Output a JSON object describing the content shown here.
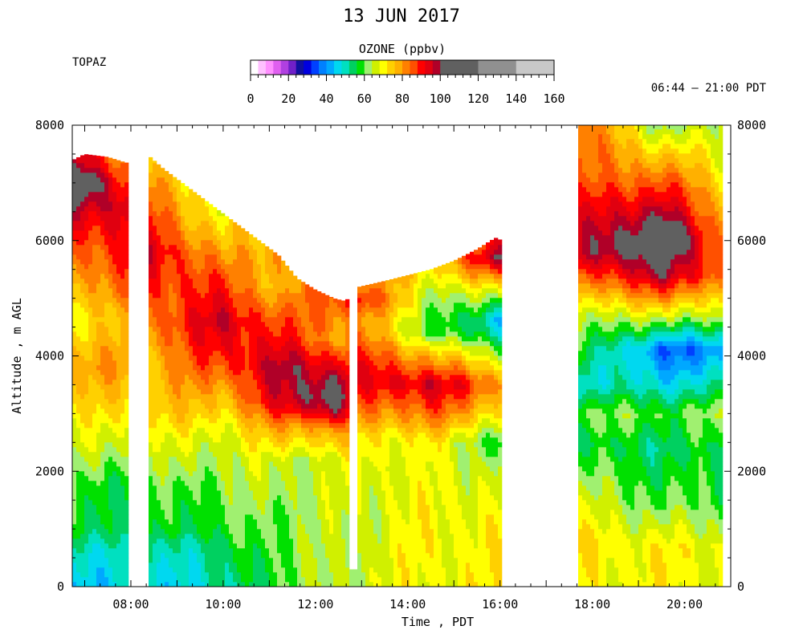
{
  "header": {
    "title": "13 JUN 2017",
    "station": "TOPAZ",
    "time_range": "06:44 – 21:00 PDT"
  },
  "colorbar": {
    "title": "OZONE (ppbv)",
    "min": 0,
    "max": 160,
    "labels": [
      "0",
      "20",
      "40",
      "60",
      "80",
      "100",
      "120",
      "140",
      "160"
    ],
    "bands": [
      {
        "from": 0,
        "to": 4,
        "color": "#ffffff"
      },
      {
        "from": 4,
        "to": 8,
        "color": "#ffc0ff"
      },
      {
        "from": 8,
        "to": 12,
        "color": "#ff90ff"
      },
      {
        "from": 12,
        "to": 16,
        "color": "#e060f0"
      },
      {
        "from": 16,
        "to": 20,
        "color": "#b040e0"
      },
      {
        "from": 20,
        "to": 24,
        "color": "#7020c8"
      },
      {
        "from": 24,
        "to": 28,
        "color": "#1010a0"
      },
      {
        "from": 28,
        "to": 32,
        "color": "#0000e0"
      },
      {
        "from": 32,
        "to": 36,
        "color": "#0040ff"
      },
      {
        "from": 36,
        "to": 40,
        "color": "#0080ff"
      },
      {
        "from": 40,
        "to": 44,
        "color": "#00a8ff"
      },
      {
        "from": 44,
        "to": 48,
        "color": "#00d8f0"
      },
      {
        "from": 48,
        "to": 52,
        "color": "#00e0c0"
      },
      {
        "from": 52,
        "to": 56,
        "color": "#00d060"
      },
      {
        "from": 56,
        "to": 60,
        "color": "#00e000"
      },
      {
        "from": 60,
        "to": 64,
        "color": "#a0f070"
      },
      {
        "from": 64,
        "to": 68,
        "color": "#d0f000"
      },
      {
        "from": 68,
        "to": 72,
        "color": "#ffff00"
      },
      {
        "from": 72,
        "to": 76,
        "color": "#ffd000"
      },
      {
        "from": 76,
        "to": 80,
        "color": "#ffb000"
      },
      {
        "from": 80,
        "to": 84,
        "color": "#ff8000"
      },
      {
        "from": 84,
        "to": 88,
        "color": "#ff5000"
      },
      {
        "from": 88,
        "to": 92,
        "color": "#ff0000"
      },
      {
        "from": 92,
        "to": 96,
        "color": "#e00010"
      },
      {
        "from": 96,
        "to": 100,
        "color": "#b00028"
      },
      {
        "from": 100,
        "to": 120,
        "color": "#606060"
      },
      {
        "from": 120,
        "to": 140,
        "color": "#909090"
      },
      {
        "from": 140,
        "to": 160,
        "color": "#c8c8c8"
      }
    ]
  },
  "chart_data": {
    "type": "heatmap",
    "title": "13 JUN 2017",
    "variable": "OZONE (ppbv)",
    "xlabel": "Time , PDT",
    "ylabel": "Altitude , m AGL",
    "x_unit": "hours PDT",
    "xlim": [
      6.73,
      21.0
    ],
    "ylim": [
      0,
      8000
    ],
    "x_ticks": [
      {
        "value": 8,
        "label": "08:00"
      },
      {
        "value": 10,
        "label": "10:00"
      },
      {
        "value": 12,
        "label": "12:00"
      },
      {
        "value": 14,
        "label": "14:00"
      },
      {
        "value": 16,
        "label": "16:00"
      },
      {
        "value": 18,
        "label": "18:00"
      },
      {
        "value": 20,
        "label": "20:00"
      }
    ],
    "y_ticks": [
      {
        "value": 0,
        "label": "0"
      },
      {
        "value": 2000,
        "label": "2000"
      },
      {
        "value": 4000,
        "label": "4000"
      },
      {
        "value": 6000,
        "label": "6000"
      },
      {
        "value": 8000,
        "label": "8000"
      }
    ],
    "data_gaps": [
      {
        "start": 7.95,
        "end": 8.35,
        "from_altitude": 0
      },
      {
        "start": 12.7,
        "end": 12.95,
        "from_altitude": 300
      },
      {
        "start": 16.05,
        "end": 17.7,
        "from_altitude": 0
      },
      {
        "start": 20.8,
        "end": 21.0,
        "from_altitude": 0
      }
    ],
    "profile_tops": [
      {
        "time": 6.75,
        "altitude": 7400
      },
      {
        "time": 7.0,
        "altitude": 7500
      },
      {
        "time": 7.5,
        "altitude": 7450
      },
      {
        "time": 7.9,
        "altitude": 7350
      },
      {
        "time": 8.35,
        "altitude": 7500
      },
      {
        "time": 8.7,
        "altitude": 7250
      },
      {
        "time": 9.2,
        "altitude": 6950
      },
      {
        "time": 9.7,
        "altitude": 6650
      },
      {
        "time": 10.2,
        "altitude": 6350
      },
      {
        "time": 10.7,
        "altitude": 6050
      },
      {
        "time": 11.2,
        "altitude": 5750
      },
      {
        "time": 11.6,
        "altitude": 5350
      },
      {
        "time": 12.0,
        "altitude": 5150
      },
      {
        "time": 12.4,
        "altitude": 5000
      },
      {
        "time": 12.65,
        "altitude": 4950
      },
      {
        "time": 12.95,
        "altitude": 5200
      },
      {
        "time": 13.5,
        "altitude": 5300
      },
      {
        "time": 14.0,
        "altitude": 5400
      },
      {
        "time": 14.5,
        "altitude": 5500
      },
      {
        "time": 15.0,
        "altitude": 5650
      },
      {
        "time": 15.5,
        "altitude": 5850
      },
      {
        "time": 15.9,
        "altitude": 6050
      },
      {
        "time": 16.05,
        "altitude": 6000
      },
      {
        "time": 17.7,
        "altitude": 8000
      },
      {
        "time": 20.8,
        "altitude": 8000
      }
    ],
    "ozone_profiles": [
      {
        "time": 6.75,
        "levels": [
          {
            "altitude": 0,
            "ozone": 46
          },
          {
            "altitude": 600,
            "ozone": 50
          },
          {
            "altitude": 1000,
            "ozone": 56
          },
          {
            "altitude": 1800,
            "ozone": 58
          },
          {
            "altitude": 2300,
            "ozone": 64
          },
          {
            "altitude": 3000,
            "ozone": 70
          },
          {
            "altitude": 3800,
            "ozone": 78
          },
          {
            "altitude": 4600,
            "ozone": 72
          },
          {
            "altitude": 5300,
            "ozone": 80
          },
          {
            "altitude": 6100,
            "ozone": 88
          },
          {
            "altitude": 6600,
            "ozone": 98
          },
          {
            "altitude": 7000,
            "ozone": 115
          },
          {
            "altitude": 7400,
            "ozone": 95
          }
        ]
      },
      {
        "time": 7.9,
        "levels": [
          {
            "altitude": 0,
            "ozone": 46
          },
          {
            "altitude": 600,
            "ozone": 50
          },
          {
            "altitude": 1000,
            "ozone": 56
          },
          {
            "altitude": 1800,
            "ozone": 58
          },
          {
            "altitude": 2300,
            "ozone": 64
          },
          {
            "altitude": 3000,
            "ozone": 72
          },
          {
            "altitude": 3800,
            "ozone": 80
          },
          {
            "altitude": 4600,
            "ozone": 74
          },
          {
            "altitude": 5300,
            "ozone": 84
          },
          {
            "altitude": 6100,
            "ozone": 92
          },
          {
            "altitude": 6600,
            "ozone": 96
          },
          {
            "altitude": 7000,
            "ozone": 88
          },
          {
            "altitude": 7350,
            "ozone": 84
          }
        ]
      },
      {
        "time": 8.35,
        "levels": [
          {
            "altitude": 0,
            "ozone": 46
          },
          {
            "altitude": 700,
            "ozone": 50
          },
          {
            "altitude": 1000,
            "ozone": 56
          },
          {
            "altitude": 1700,
            "ozone": 58
          },
          {
            "altitude": 2300,
            "ozone": 64
          },
          {
            "altitude": 3000,
            "ozone": 74
          },
          {
            "altitude": 4000,
            "ozone": 78
          },
          {
            "altitude": 5000,
            "ozone": 86
          },
          {
            "altitude": 5800,
            "ozone": 96
          },
          {
            "altitude": 6600,
            "ozone": 86
          },
          {
            "altitude": 7500,
            "ozone": 72
          }
        ]
      },
      {
        "time": 10.0,
        "levels": [
          {
            "altitude": 0,
            "ozone": 50
          },
          {
            "altitude": 700,
            "ozone": 54
          },
          {
            "altitude": 1000,
            "ozone": 58
          },
          {
            "altitude": 1700,
            "ozone": 62
          },
          {
            "altitude": 2600,
            "ozone": 68
          },
          {
            "altitude": 3300,
            "ozone": 78
          },
          {
            "altitude": 4000,
            "ozone": 90
          },
          {
            "altitude": 4600,
            "ozone": 96
          },
          {
            "altitude": 5300,
            "ozone": 86
          },
          {
            "altitude": 6000,
            "ozone": 74
          },
          {
            "altitude": 6500,
            "ozone": 68
          }
        ]
      },
      {
        "time": 11.3,
        "levels": [
          {
            "altitude": 0,
            "ozone": 60
          },
          {
            "altitude": 700,
            "ozone": 62
          },
          {
            "altitude": 1200,
            "ozone": 62
          },
          {
            "altitude": 2200,
            "ozone": 66
          },
          {
            "altitude": 2800,
            "ozone": 80
          },
          {
            "altitude": 3200,
            "ozone": 94
          },
          {
            "altitude": 3800,
            "ozone": 98
          },
          {
            "altitude": 4400,
            "ozone": 88
          },
          {
            "altitude": 5200,
            "ozone": 76
          },
          {
            "altitude": 5700,
            "ozone": 80
          }
        ]
      },
      {
        "time": 12.4,
        "levels": [
          {
            "altitude": 0,
            "ozone": 64
          },
          {
            "altitude": 1000,
            "ozone": 64
          },
          {
            "altitude": 2200,
            "ozone": 66
          },
          {
            "altitude": 2700,
            "ozone": 80
          },
          {
            "altitude": 3000,
            "ozone": 98
          },
          {
            "altitude": 3300,
            "ozone": 108
          },
          {
            "altitude": 3700,
            "ozone": 98
          },
          {
            "altitude": 4300,
            "ozone": 80
          },
          {
            "altitude": 5000,
            "ozone": 88
          }
        ]
      },
      {
        "time": 12.95,
        "levels": [
          {
            "altitude": 0,
            "ozone": 66
          },
          {
            "altitude": 1000,
            "ozone": 66
          },
          {
            "altitude": 2000,
            "ozone": 68
          },
          {
            "altitude": 2600,
            "ozone": 72
          },
          {
            "altitude": 3100,
            "ozone": 82
          },
          {
            "altitude": 3600,
            "ozone": 92
          },
          {
            "altitude": 4100,
            "ozone": 86
          },
          {
            "altitude": 4600,
            "ozone": 80
          },
          {
            "altitude": 5000,
            "ozone": 92
          },
          {
            "altitude": 5200,
            "ozone": 84
          }
        ]
      },
      {
        "time": 14.5,
        "levels": [
          {
            "altitude": 0,
            "ozone": 70
          },
          {
            "altitude": 1000,
            "ozone": 70
          },
          {
            "altitude": 2000,
            "ozone": 68
          },
          {
            "altitude": 2500,
            "ozone": 70
          },
          {
            "altitude": 3000,
            "ozone": 84
          },
          {
            "altitude": 3500,
            "ozone": 96
          },
          {
            "altitude": 4000,
            "ozone": 78
          },
          {
            "altitude": 4400,
            "ozone": 60
          },
          {
            "altitude": 5000,
            "ozone": 64
          },
          {
            "altitude": 5500,
            "ozone": 72
          }
        ]
      },
      {
        "time": 16.05,
        "levels": [
          {
            "altitude": 0,
            "ozone": 70
          },
          {
            "altitude": 1000,
            "ozone": 70
          },
          {
            "altitude": 2000,
            "ozone": 66
          },
          {
            "altitude": 2500,
            "ozone": 58
          },
          {
            "altitude": 3000,
            "ozone": 72
          },
          {
            "altitude": 3500,
            "ozone": 82
          },
          {
            "altitude": 4000,
            "ozone": 64
          },
          {
            "altitude": 4600,
            "ozone": 44
          },
          {
            "altitude": 5200,
            "ozone": 70
          },
          {
            "altitude": 5700,
            "ozone": 100
          },
          {
            "altitude": 6000,
            "ozone": 90
          }
        ]
      },
      {
        "time": 17.7,
        "levels": [
          {
            "altitude": 0,
            "ozone": 70
          },
          {
            "altitude": 700,
            "ozone": 72
          },
          {
            "altitude": 1500,
            "ozone": 66
          },
          {
            "altitude": 2500,
            "ozone": 56
          },
          {
            "altitude": 3000,
            "ozone": 62
          },
          {
            "altitude": 3500,
            "ozone": 50
          },
          {
            "altitude": 4000,
            "ozone": 58
          },
          {
            "altitude": 4700,
            "ozone": 66
          },
          {
            "altitude": 5300,
            "ozone": 82
          },
          {
            "altitude": 5800,
            "ozone": 96
          },
          {
            "altitude": 6500,
            "ozone": 90
          },
          {
            "altitude": 7200,
            "ozone": 82
          },
          {
            "altitude": 8000,
            "ozone": 86
          }
        ]
      },
      {
        "time": 19.5,
        "levels": [
          {
            "altitude": 0,
            "ozone": 70
          },
          {
            "altitude": 700,
            "ozone": 70
          },
          {
            "altitude": 1500,
            "ozone": 60
          },
          {
            "altitude": 2400,
            "ozone": 54
          },
          {
            "altitude": 3000,
            "ozone": 60
          },
          {
            "altitude": 3500,
            "ozone": 48
          },
          {
            "altitude": 4100,
            "ozone": 36
          },
          {
            "altitude": 4700,
            "ozone": 66
          },
          {
            "altitude": 5400,
            "ozone": 98
          },
          {
            "altitude": 6000,
            "ozone": 112
          },
          {
            "altitude": 6600,
            "ozone": 96
          },
          {
            "altitude": 7300,
            "ozone": 80
          },
          {
            "altitude": 8000,
            "ozone": 62
          }
        ]
      },
      {
        "time": 20.8,
        "levels": [
          {
            "altitude": 0,
            "ozone": 68
          },
          {
            "altitude": 700,
            "ozone": 68
          },
          {
            "altitude": 1500,
            "ozone": 58
          },
          {
            "altitude": 2400,
            "ozone": 56
          },
          {
            "altitude": 3000,
            "ozone": 62
          },
          {
            "altitude": 3500,
            "ozone": 50
          },
          {
            "altitude": 4100,
            "ozone": 40
          },
          {
            "altitude": 4700,
            "ozone": 66
          },
          {
            "altitude": 5400,
            "ozone": 86
          },
          {
            "altitude": 6000,
            "ozone": 84
          },
          {
            "altitude": 6600,
            "ozone": 78
          },
          {
            "altitude": 7300,
            "ozone": 70
          },
          {
            "altitude": 8000,
            "ozone": 64
          }
        ]
      }
    ]
  }
}
